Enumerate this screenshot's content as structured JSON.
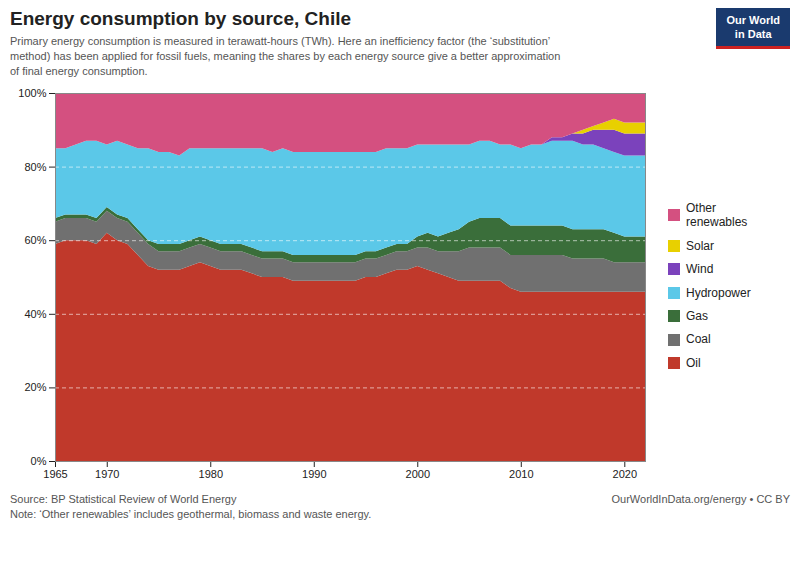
{
  "chart_data": {
    "type": "area",
    "stacked": true,
    "title": "Energy consumption by source, Chile",
    "subtitle": "Primary energy consumption is measured in terawatt-hours (TWh). Here an inefficiency factor (the ‘substitution’\nmethod) has been applied for fossil fuels, meaning the shares by each energy source give a better approximation\nof final energy consumption.",
    "annotations": [
      "Source: BP Statistical Review of World Energy",
      "Note: ‘Other renewables’ includes geothermal, biomass and waste energy.",
      "OurWorldInData.org/energy • CC BY",
      "Our World\nin Data"
    ],
    "x": [
      1965,
      1966,
      1967,
      1968,
      1969,
      1970,
      1971,
      1972,
      1973,
      1974,
      1975,
      1976,
      1977,
      1978,
      1979,
      1980,
      1981,
      1982,
      1983,
      1984,
      1985,
      1986,
      1987,
      1988,
      1989,
      1990,
      1991,
      1992,
      1993,
      1994,
      1995,
      1996,
      1997,
      1998,
      1999,
      2000,
      2001,
      2002,
      2003,
      2004,
      2005,
      2006,
      2007,
      2008,
      2009,
      2010,
      2011,
      2012,
      2013,
      2014,
      2015,
      2016,
      2017,
      2018,
      2019,
      2020,
      2021,
      2022
    ],
    "series": [
      {
        "name": "Oil",
        "color": "#c0392b",
        "values": [
          59,
          60,
          60,
          60,
          59,
          62,
          60,
          59,
          56,
          53,
          52,
          52,
          52,
          53,
          54,
          53,
          52,
          52,
          52,
          51,
          50,
          50,
          50,
          49,
          49,
          49,
          49,
          49,
          49,
          49,
          50,
          50,
          51,
          52,
          52,
          53,
          52,
          51,
          50,
          49,
          49,
          49,
          49,
          49,
          47,
          46,
          46,
          46,
          46,
          46,
          46,
          46,
          46,
          46,
          46,
          46,
          46,
          46
        ]
      },
      {
        "name": "Coal",
        "color": "#707070",
        "values": [
          6,
          6,
          6,
          6,
          6,
          6,
          6,
          6,
          6,
          6,
          5,
          5,
          5,
          5,
          5,
          5,
          5,
          5,
          5,
          5,
          5,
          5,
          5,
          5,
          5,
          5,
          5,
          5,
          5,
          5,
          5,
          5,
          5,
          5,
          5,
          5,
          6,
          6,
          7,
          8,
          9,
          9,
          9,
          9,
          9,
          10,
          10,
          10,
          10,
          10,
          9,
          9,
          9,
          9,
          8,
          8,
          8,
          8
        ]
      },
      {
        "name": "Gas",
        "color": "#3a6e3a",
        "values": [
          1,
          1,
          1,
          1,
          1,
          1,
          1,
          1,
          1,
          1,
          2,
          2,
          2,
          2,
          2,
          2,
          2,
          2,
          2,
          2,
          2,
          2,
          2,
          2,
          2,
          2,
          2,
          2,
          2,
          2,
          2,
          2,
          2,
          2,
          2,
          3,
          4,
          4,
          5,
          6,
          7,
          8,
          8,
          8,
          8,
          8,
          8,
          8,
          8,
          8,
          8,
          8,
          8,
          8,
          8,
          7,
          7,
          7
        ]
      },
      {
        "name": "Hydropower",
        "color": "#5bc8e8",
        "values": [
          19,
          18,
          19,
          20,
          21,
          17,
          20,
          20,
          22,
          25,
          25,
          25,
          24,
          25,
          24,
          25,
          26,
          26,
          26,
          27,
          28,
          27,
          28,
          28,
          28,
          28,
          28,
          28,
          28,
          28,
          27,
          27,
          27,
          26,
          26,
          25,
          24,
          25,
          24,
          23,
          21,
          21,
          21,
          20,
          22,
          21,
          22,
          22,
          23,
          23,
          24,
          23,
          23,
          22,
          22,
          22,
          22,
          22
        ]
      },
      {
        "name": "Wind",
        "color": "#7b42bc",
        "values": [
          0,
          0,
          0,
          0,
          0,
          0,
          0,
          0,
          0,
          0,
          0,
          0,
          0,
          0,
          0,
          0,
          0,
          0,
          0,
          0,
          0,
          0,
          0,
          0,
          0,
          0,
          0,
          0,
          0,
          0,
          0,
          0,
          0,
          0,
          0,
          0,
          0,
          0,
          0,
          0,
          0,
          0,
          0,
          0,
          0,
          0,
          0,
          0,
          1,
          1,
          2,
          3,
          4,
          5,
          6,
          6,
          6,
          6
        ]
      },
      {
        "name": "Solar",
        "color": "#e8d000",
        "values": [
          0,
          0,
          0,
          0,
          0,
          0,
          0,
          0,
          0,
          0,
          0,
          0,
          0,
          0,
          0,
          0,
          0,
          0,
          0,
          0,
          0,
          0,
          0,
          0,
          0,
          0,
          0,
          0,
          0,
          0,
          0,
          0,
          0,
          0,
          0,
          0,
          0,
          0,
          0,
          0,
          0,
          0,
          0,
          0,
          0,
          0,
          0,
          0,
          0,
          0,
          0,
          1,
          1,
          2,
          3,
          3,
          3,
          3
        ]
      },
      {
        "name": "Other\nrenewables",
        "color": "#d45080",
        "values": [
          15,
          15,
          14,
          13,
          13,
          14,
          13,
          14,
          15,
          15,
          16,
          16,
          17,
          15,
          15,
          15,
          15,
          15,
          15,
          15,
          15,
          16,
          15,
          16,
          16,
          16,
          16,
          16,
          16,
          16,
          16,
          16,
          15,
          15,
          15,
          14,
          14,
          14,
          14,
          14,
          14,
          13,
          13,
          14,
          14,
          15,
          14,
          14,
          12,
          12,
          11,
          10,
          9,
          8,
          7,
          8,
          8,
          8
        ]
      }
    ],
    "xlim": [
      1965,
      2022
    ],
    "xticks": [
      1965,
      1970,
      1980,
      1990,
      2000,
      2010,
      2020
    ],
    "ylim": [
      0,
      100
    ],
    "yticks": [
      {
        "value": 0,
        "label": "0%"
      },
      {
        "value": 20,
        "label": "20%"
      },
      {
        "value": 40,
        "label": "40%"
      },
      {
        "value": 60,
        "label": "60%"
      },
      {
        "value": 80,
        "label": "80%"
      },
      {
        "value": 100,
        "label": "100%"
      }
    ],
    "grid": true
  }
}
